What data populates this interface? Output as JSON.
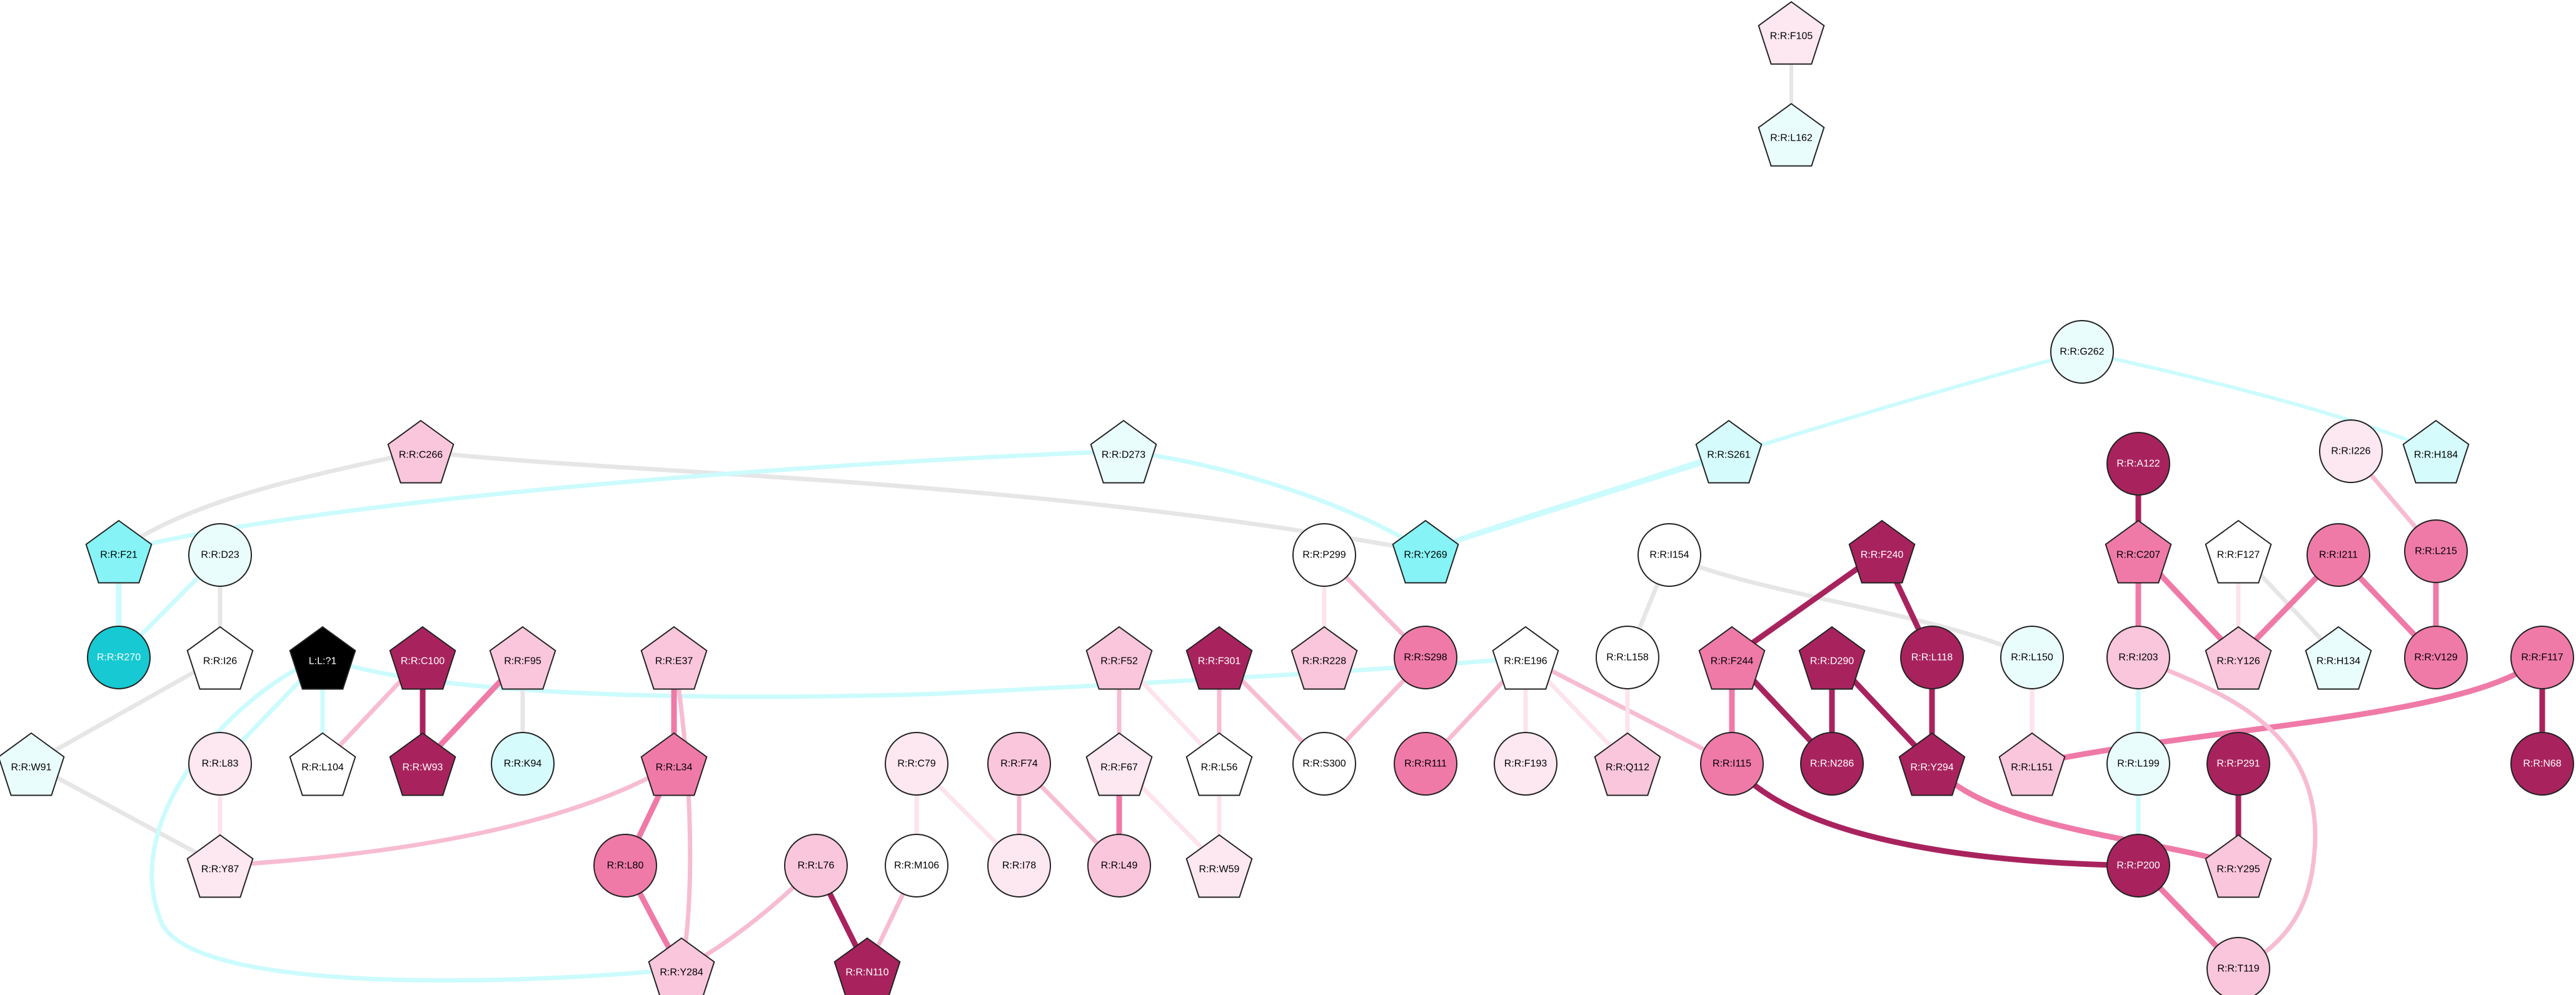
{
  "colors": {
    "white": "#ffffff",
    "black": "#000000",
    "pink_light": "#fde7f0",
    "pink": "#f9c6db",
    "pink_mid": "#ef7aa8",
    "magenta": "#a8235e",
    "cyan_light": "#eafdfd",
    "cyan_mid": "#d6fbfc",
    "cyan": "#86f3f6",
    "teal": "#16c9d2",
    "edge_gray": "#e6e6e6",
    "edge_cyan": "#ccfbfd",
    "edge_pink_light": "#fde3ec",
    "edge_pink": "#f7bcd2",
    "edge_pink_mid": "#ef7aa8",
    "edge_magenta": "#a8235e"
  },
  "nodes": [
    {
      "id": "F105",
      "label": "R:R:F105",
      "shape": "pentagon",
      "fill": "pink_light"
    },
    {
      "id": "L162",
      "label": "R:R:L162",
      "shape": "pentagon",
      "fill": "cyan_light"
    },
    {
      "id": "G262",
      "label": "R:R:G262",
      "shape": "circle",
      "fill": "cyan_light"
    },
    {
      "id": "H184",
      "label": "R:R:H184",
      "shape": "pentagon",
      "fill": "cyan_mid"
    },
    {
      "id": "A122",
      "label": "R:R:A122",
      "shape": "circle",
      "fill": "magenta"
    },
    {
      "id": "I226",
      "label": "R:R:I226",
      "shape": "circle",
      "fill": "pink_light"
    },
    {
      "id": "C266",
      "label": "R:R:C266",
      "shape": "pentagon",
      "fill": "pink"
    },
    {
      "id": "D273",
      "label": "R:R:D273",
      "shape": "pentagon",
      "fill": "cyan_light"
    },
    {
      "id": "S261",
      "label": "R:R:S261",
      "shape": "pentagon",
      "fill": "cyan_mid"
    },
    {
      "id": "C207",
      "label": "R:R:C207",
      "shape": "pentagon",
      "fill": "pink_mid"
    },
    {
      "id": "L215",
      "label": "R:R:L215",
      "shape": "circle",
      "fill": "pink_mid"
    },
    {
      "id": "F21",
      "label": "R:R:F21",
      "shape": "pentagon",
      "fill": "cyan"
    },
    {
      "id": "D23",
      "label": "R:R:D23",
      "shape": "circle",
      "fill": "cyan_light"
    },
    {
      "id": "P299",
      "label": "R:R:P299",
      "shape": "circle",
      "fill": "white"
    },
    {
      "id": "Y269",
      "label": "R:R:Y269",
      "shape": "pentagon",
      "fill": "cyan"
    },
    {
      "id": "I154",
      "label": "R:R:I154",
      "shape": "circle",
      "fill": "white"
    },
    {
      "id": "F240",
      "label": "R:R:F240",
      "shape": "pentagon",
      "fill": "magenta"
    },
    {
      "id": "F127",
      "label": "R:R:F127",
      "shape": "pentagon",
      "fill": "white"
    },
    {
      "id": "I211",
      "label": "R:R:I211",
      "shape": "circle",
      "fill": "pink_mid"
    },
    {
      "id": "R270",
      "label": "R:R:R270",
      "shape": "circle",
      "fill": "teal"
    },
    {
      "id": "I26",
      "label": "R:R:I26",
      "shape": "pentagon",
      "fill": "white"
    },
    {
      "id": "L?1",
      "label": "L:L:?1",
      "shape": "pentagon",
      "fill": "black"
    },
    {
      "id": "C100",
      "label": "R:R:C100",
      "shape": "pentagon",
      "fill": "magenta"
    },
    {
      "id": "F95",
      "label": "R:R:F95",
      "shape": "pentagon",
      "fill": "pink"
    },
    {
      "id": "E37",
      "label": "R:R:E37",
      "shape": "pentagon",
      "fill": "pink"
    },
    {
      "id": "F52",
      "label": "R:R:F52",
      "shape": "pentagon",
      "fill": "pink"
    },
    {
      "id": "F301",
      "label": "R:R:F301",
      "shape": "pentagon",
      "fill": "magenta"
    },
    {
      "id": "R228",
      "label": "R:R:R228",
      "shape": "pentagon",
      "fill": "pink"
    },
    {
      "id": "S298",
      "label": "R:R:S298",
      "shape": "circle",
      "fill": "pink_mid"
    },
    {
      "id": "E196",
      "label": "R:R:E196",
      "shape": "pentagon",
      "fill": "white"
    },
    {
      "id": "L158",
      "label": "R:R:L158",
      "shape": "circle",
      "fill": "white"
    },
    {
      "id": "F244",
      "label": "R:R:F244",
      "shape": "pentagon",
      "fill": "pink_mid"
    },
    {
      "id": "D290",
      "label": "R:R:D290",
      "shape": "pentagon",
      "fill": "magenta"
    },
    {
      "id": "L118",
      "label": "R:R:L118",
      "shape": "circle",
      "fill": "magenta"
    },
    {
      "id": "L150",
      "label": "R:R:L150",
      "shape": "circle",
      "fill": "cyan_light"
    },
    {
      "id": "I203",
      "label": "R:R:I203",
      "shape": "circle",
      "fill": "pink"
    },
    {
      "id": "Y126",
      "label": "R:R:Y126",
      "shape": "pentagon",
      "fill": "pink"
    },
    {
      "id": "H134",
      "label": "R:R:H134",
      "shape": "pentagon",
      "fill": "cyan_light"
    },
    {
      "id": "V129",
      "label": "R:R:V129",
      "shape": "circle",
      "fill": "pink_mid"
    },
    {
      "id": "F117",
      "label": "R:R:F117",
      "shape": "circle",
      "fill": "pink_mid"
    },
    {
      "id": "W91",
      "label": "R:R:W91",
      "shape": "pentagon",
      "fill": "cyan_light"
    },
    {
      "id": "L83",
      "label": "R:R:L83",
      "shape": "circle",
      "fill": "pink_light"
    },
    {
      "id": "L104",
      "label": "R:R:L104",
      "shape": "pentagon",
      "fill": "white"
    },
    {
      "id": "W93",
      "label": "R:R:W93",
      "shape": "pentagon",
      "fill": "magenta"
    },
    {
      "id": "K94",
      "label": "R:R:K94",
      "shape": "circle",
      "fill": "cyan_mid"
    },
    {
      "id": "L34",
      "label": "R:R:L34",
      "shape": "pentagon",
      "fill": "pink_mid"
    },
    {
      "id": "S300",
      "label": "R:R:S300",
      "shape": "circle",
      "fill": "white"
    },
    {
      "id": "R111",
      "label": "R:R:R111",
      "shape": "circle",
      "fill": "pink_mid"
    },
    {
      "id": "F193",
      "label": "R:R:F193",
      "shape": "circle",
      "fill": "pink_light"
    },
    {
      "id": "Q112",
      "label": "R:R:Q112",
      "shape": "pentagon",
      "fill": "pink"
    },
    {
      "id": "I115",
      "label": "R:R:I115",
      "shape": "circle",
      "fill": "pink_mid"
    },
    {
      "id": "N286",
      "label": "R:R:N286",
      "shape": "circle",
      "fill": "magenta"
    },
    {
      "id": "Y294",
      "label": "R:R:Y294",
      "shape": "pentagon",
      "fill": "magenta"
    },
    {
      "id": "L151",
      "label": "R:R:L151",
      "shape": "pentagon",
      "fill": "pink"
    },
    {
      "id": "N68",
      "label": "R:R:N68",
      "shape": "circle",
      "fill": "magenta"
    },
    {
      "id": "C79",
      "label": "R:R:C79",
      "shape": "circle",
      "fill": "pink_light"
    },
    {
      "id": "F74",
      "label": "R:R:F74",
      "shape": "circle",
      "fill": "pink"
    },
    {
      "id": "F67",
      "label": "R:R:F67",
      "shape": "pentagon",
      "fill": "pink_light"
    },
    {
      "id": "L56",
      "label": "R:R:L56",
      "shape": "pentagon",
      "fill": "white"
    },
    {
      "id": "L199",
      "label": "R:R:L199",
      "shape": "circle",
      "fill": "cyan_light"
    },
    {
      "id": "P291",
      "label": "R:R:P291",
      "shape": "circle",
      "fill": "magenta"
    },
    {
      "id": "Y87",
      "label": "R:R:Y87",
      "shape": "pentagon",
      "fill": "pink_light"
    },
    {
      "id": "L80",
      "label": "R:R:L80",
      "shape": "circle",
      "fill": "pink_mid"
    },
    {
      "id": "L76",
      "label": "R:R:L76",
      "shape": "circle",
      "fill": "pink"
    },
    {
      "id": "M106",
      "label": "R:R:M106",
      "shape": "circle",
      "fill": "white"
    },
    {
      "id": "I78",
      "label": "R:R:I78",
      "shape": "circle",
      "fill": "pink_light"
    },
    {
      "id": "L49",
      "label": "R:R:L49",
      "shape": "circle",
      "fill": "pink"
    },
    {
      "id": "W59",
      "label": "R:R:W59",
      "shape": "pentagon",
      "fill": "pink_light"
    },
    {
      "id": "P200",
      "label": "R:R:P200",
      "shape": "circle",
      "fill": "magenta"
    },
    {
      "id": "Y295",
      "label": "R:R:Y295",
      "shape": "pentagon",
      "fill": "pink"
    },
    {
      "id": "Y284",
      "label": "R:R:Y284",
      "shape": "pentagon",
      "fill": "pink"
    },
    {
      "id": "N110",
      "label": "R:R:N110",
      "shape": "pentagon",
      "fill": "magenta"
    },
    {
      "id": "T119",
      "label": "R:R:T119",
      "shape": "circle",
      "fill": "pink"
    }
  ],
  "edges": [
    {
      "from": "F105",
      "to": "L162",
      "color": "edge_gray",
      "weight": 1
    },
    {
      "from": "G262",
      "to": "H184",
      "color": "edge_cyan",
      "weight": 1
    },
    {
      "from": "G262",
      "to": "Y269",
      "color": "edge_cyan",
      "weight": 1
    },
    {
      "from": "A122",
      "to": "C207",
      "color": "edge_magenta",
      "weight": 3
    },
    {
      "from": "I226",
      "to": "L215",
      "color": "edge_pink",
      "weight": 2
    },
    {
      "from": "C266",
      "to": "F21",
      "color": "edge_gray",
      "weight": 2
    },
    {
      "from": "C266",
      "to": "Y269",
      "color": "edge_gray",
      "weight": 2
    },
    {
      "from": "D273",
      "to": "F21",
      "color": "edge_cyan",
      "weight": 2
    },
    {
      "from": "D273",
      "to": "Y269",
      "color": "edge_cyan",
      "weight": 2
    },
    {
      "from": "F21",
      "to": "R270",
      "color": "edge_cyan",
      "weight": 3
    },
    {
      "from": "D23",
      "to": "R270",
      "color": "edge_cyan",
      "weight": 2
    },
    {
      "from": "D23",
      "to": "I26",
      "color": "edge_gray",
      "weight": 2
    },
    {
      "from": "I26",
      "to": "W91",
      "color": "edge_gray",
      "weight": 2
    },
    {
      "from": "W91",
      "to": "Y87",
      "color": "edge_gray",
      "weight": 2
    },
    {
      "from": "L?1",
      "to": "L83",
      "color": "edge_cyan",
      "weight": 2
    },
    {
      "from": "L?1",
      "to": "L104",
      "color": "edge_cyan",
      "weight": 2
    },
    {
      "from": "L?1",
      "to": "Y284",
      "color": "edge_cyan",
      "weight": 2
    },
    {
      "from": "L?1",
      "to": "E196",
      "color": "edge_cyan",
      "weight": 2
    },
    {
      "from": "C100",
      "to": "W93",
      "color": "edge_magenta",
      "weight": 3
    },
    {
      "from": "C100",
      "to": "L104",
      "color": "edge_pink",
      "weight": 2
    },
    {
      "from": "F95",
      "to": "W93",
      "color": "edge_pink_mid",
      "weight": 3
    },
    {
      "from": "F95",
      "to": "K94",
      "color": "edge_gray",
      "weight": 2
    },
    {
      "from": "L83",
      "to": "Y87",
      "color": "edge_pink_light",
      "weight": 2
    },
    {
      "from": "E37",
      "to": "L34",
      "color": "edge_pink_mid",
      "weight": 3
    },
    {
      "from": "E37",
      "to": "Y284",
      "color": "edge_pink",
      "weight": 2
    },
    {
      "from": "L34",
      "to": "L80",
      "color": "edge_pink_mid",
      "weight": 3
    },
    {
      "from": "L34",
      "to": "Y87",
      "color": "edge_pink",
      "weight": 2
    },
    {
      "from": "L80",
      "to": "Y284",
      "color": "edge_pink_mid",
      "weight": 3
    },
    {
      "from": "L76",
      "to": "Y284",
      "color": "edge_pink",
      "weight": 2
    },
    {
      "from": "L76",
      "to": "N110",
      "color": "edge_magenta",
      "weight": 3
    },
    {
      "from": "M106",
      "to": "N110",
      "color": "edge_pink",
      "weight": 2
    },
    {
      "from": "C79",
      "to": "M106",
      "color": "edge_pink_light",
      "weight": 2
    },
    {
      "from": "C79",
      "to": "I78",
      "color": "edge_pink_light",
      "weight": 2
    },
    {
      "from": "F74",
      "to": "I78",
      "color": "edge_pink",
      "weight": 2
    },
    {
      "from": "F74",
      "to": "L49",
      "color": "edge_pink",
      "weight": 2
    },
    {
      "from": "F52",
      "to": "F67",
      "color": "edge_pink",
      "weight": 2
    },
    {
      "from": "F52",
      "to": "L56",
      "color": "edge_pink_light",
      "weight": 2
    },
    {
      "from": "F67",
      "to": "L49",
      "color": "edge_pink_mid",
      "weight": 3
    },
    {
      "from": "F67",
      "to": "W59",
      "color": "edge_pink_light",
      "weight": 2
    },
    {
      "from": "L56",
      "to": "W59",
      "color": "edge_pink_light",
      "weight": 2
    },
    {
      "from": "F301",
      "to": "L56",
      "color": "edge_pink",
      "weight": 2
    },
    {
      "from": "F301",
      "to": "S300",
      "color": "edge_pink",
      "weight": 2
    },
    {
      "from": "P299",
      "to": "R228",
      "color": "edge_pink_light",
      "weight": 2
    },
    {
      "from": "P299",
      "to": "S298",
      "color": "edge_pink",
      "weight": 2
    },
    {
      "from": "S298",
      "to": "S300",
      "color": "edge_pink",
      "weight": 2
    },
    {
      "from": "E196",
      "to": "R111",
      "color": "edge_pink",
      "weight": 2
    },
    {
      "from": "E196",
      "to": "F193",
      "color": "edge_pink_light",
      "weight": 2
    },
    {
      "from": "E196",
      "to": "Q112",
      "color": "edge_pink_light",
      "weight": 2
    },
    {
      "from": "E196",
      "to": "I115",
      "color": "edge_pink",
      "weight": 2
    },
    {
      "from": "I154",
      "to": "L158",
      "color": "edge_gray",
      "weight": 2
    },
    {
      "from": "I154",
      "to": "L150",
      "color": "edge_gray",
      "weight": 2
    },
    {
      "from": "L158",
      "to": "Q112",
      "color": "edge_pink_light",
      "weight": 2
    },
    {
      "from": "F240",
      "to": "F244",
      "color": "edge_magenta",
      "weight": 3
    },
    {
      "from": "F240",
      "to": "L118",
      "color": "edge_magenta",
      "weight": 3
    },
    {
      "from": "F244",
      "to": "N286",
      "color": "edge_magenta",
      "weight": 3
    },
    {
      "from": "F244",
      "to": "I115",
      "color": "edge_pink_mid",
      "weight": 3
    },
    {
      "from": "D290",
      "to": "N286",
      "color": "edge_magenta",
      "weight": 3
    },
    {
      "from": "D290",
      "to": "Y294",
      "color": "edge_magenta",
      "weight": 3
    },
    {
      "from": "L118",
      "to": "Y294",
      "color": "edge_magenta",
      "weight": 3
    },
    {
      "from": "I115",
      "to": "P200",
      "color": "edge_magenta",
      "weight": 3
    },
    {
      "from": "Y294",
      "to": "Y295",
      "color": "edge_pink_mid",
      "weight": 3
    },
    {
      "from": "L150",
      "to": "L151",
      "color": "edge_pink_light",
      "weight": 2
    },
    {
      "from": "F117",
      "to": "L151",
      "color": "edge_pink_mid",
      "weight": 3
    },
    {
      "from": "F117",
      "to": "N68",
      "color": "edge_magenta",
      "weight": 3
    },
    {
      "from": "C207",
      "to": "I203",
      "color": "edge_pink_mid",
      "weight": 3
    },
    {
      "from": "C207",
      "to": "Y126",
      "color": "edge_pink_mid",
      "weight": 3
    },
    {
      "from": "F127",
      "to": "Y126",
      "color": "edge_pink_light",
      "weight": 2
    },
    {
      "from": "F127",
      "to": "H134",
      "color": "edge_gray",
      "weight": 2
    },
    {
      "from": "I211",
      "to": "Y126",
      "color": "edge_pink_mid",
      "weight": 3
    },
    {
      "from": "I211",
      "to": "V129",
      "color": "edge_pink_mid",
      "weight": 3
    },
    {
      "from": "L215",
      "to": "V129",
      "color": "edge_pink_mid",
      "weight": 3
    },
    {
      "from": "I203",
      "to": "L199",
      "color": "edge_cyan",
      "weight": 2
    },
    {
      "from": "I203",
      "to": "T119",
      "color": "edge_pink",
      "weight": 2
    },
    {
      "from": "L199",
      "to": "P200",
      "color": "edge_cyan",
      "weight": 2
    },
    {
      "from": "P291",
      "to": "Y295",
      "color": "edge_magenta",
      "weight": 3
    },
    {
      "from": "P200",
      "to": "T119",
      "color": "edge_pink_mid",
      "weight": 3
    },
    {
      "from": "S261",
      "to": "Y269",
      "color": "edge_cyan",
      "weight": 2
    }
  ]
}
